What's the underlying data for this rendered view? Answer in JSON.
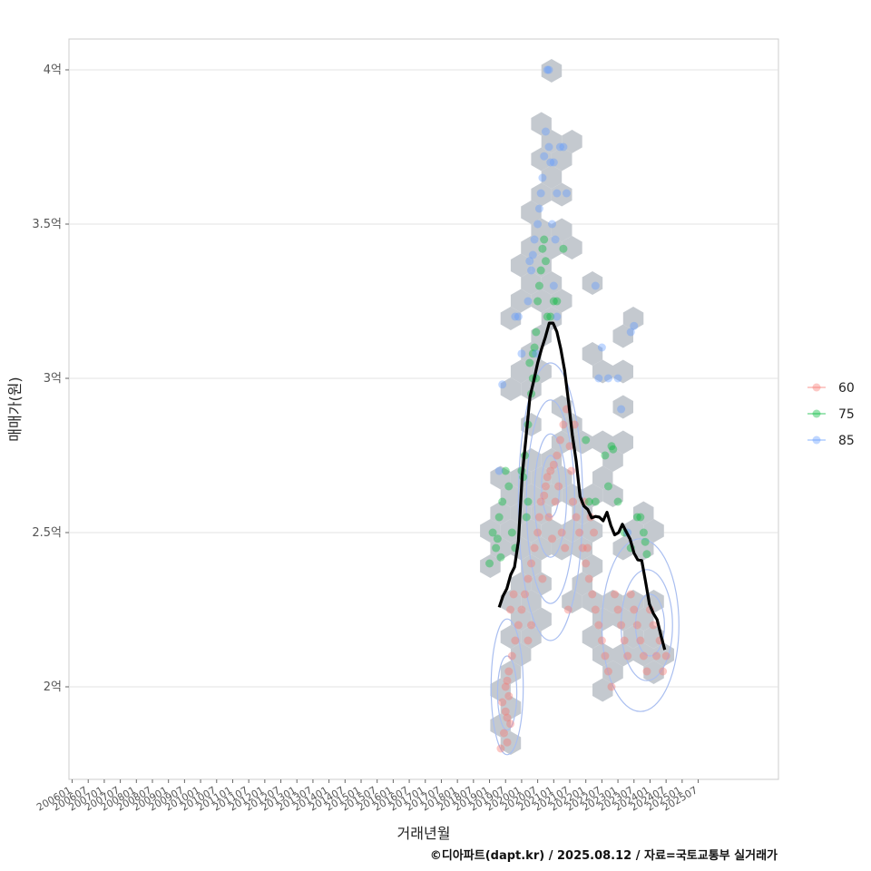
{
  "chart_data": {
    "type": "scatter",
    "xlabel": "거래년월",
    "ylabel": "매매가(원)",
    "x_ticks": [
      "200601",
      "200607",
      "200701",
      "200707",
      "200801",
      "200807",
      "200901",
      "200907",
      "201001",
      "201007",
      "201101",
      "201107",
      "201201",
      "201207",
      "201301",
      "201307",
      "201401",
      "201407",
      "201501",
      "201507",
      "201601",
      "201607",
      "201701",
      "201707",
      "201801",
      "201807",
      "201901",
      "201907",
      "202001",
      "202007",
      "202101",
      "202107",
      "202201",
      "202207",
      "202301",
      "202307",
      "202401",
      "202407",
      "202501",
      "202507"
    ],
    "y_ticks": [
      {
        "value": 2.0,
        "label": "2억"
      },
      {
        "value": 2.5,
        "label": "2.5억"
      },
      {
        "value": 3.0,
        "label": "3억"
      },
      {
        "value": 3.5,
        "label": "3.5억"
      },
      {
        "value": 4.0,
        "label": "4억"
      }
    ],
    "xlim": [
      2005.9,
      2028.0
    ],
    "ylim": [
      1.7,
      4.1
    ],
    "legend_position": "right",
    "grid": true,
    "series": [
      {
        "name": "60",
        "color": "#F8766D",
        "points": [
          [
            2019.4,
            1.95
          ],
          [
            2019.5,
            2.0
          ],
          [
            2019.55,
            1.9
          ],
          [
            2019.6,
            2.05
          ],
          [
            2019.45,
            1.85
          ],
          [
            2019.5,
            1.92
          ],
          [
            2019.6,
            1.97
          ],
          [
            2019.7,
            2.1
          ],
          [
            2019.35,
            1.8
          ],
          [
            2019.55,
            2.02
          ],
          [
            2019.65,
            1.88
          ],
          [
            2019.8,
            2.15
          ],
          [
            2019.9,
            2.2
          ],
          [
            2020.0,
            2.25
          ],
          [
            2020.1,
            2.3
          ],
          [
            2020.2,
            2.35
          ],
          [
            2020.3,
            2.4
          ],
          [
            2020.4,
            2.45
          ],
          [
            2020.5,
            2.5
          ],
          [
            2020.55,
            2.55
          ],
          [
            2020.6,
            2.6
          ],
          [
            2020.7,
            2.62
          ],
          [
            2020.75,
            2.65
          ],
          [
            2020.8,
            2.68
          ],
          [
            2020.9,
            2.7
          ],
          [
            2021.0,
            2.72
          ],
          [
            2021.1,
            2.75
          ],
          [
            2021.2,
            2.8
          ],
          [
            2021.3,
            2.85
          ],
          [
            2021.4,
            2.9
          ],
          [
            2021.5,
            2.78
          ],
          [
            2021.55,
            2.7
          ],
          [
            2020.85,
            2.55
          ],
          [
            2020.95,
            2.48
          ],
          [
            2021.05,
            2.6
          ],
          [
            2021.15,
            2.65
          ],
          [
            2021.25,
            2.5
          ],
          [
            2021.35,
            2.45
          ],
          [
            2021.6,
            2.6
          ],
          [
            2021.7,
            2.55
          ],
          [
            2021.8,
            2.5
          ],
          [
            2021.9,
            2.45
          ],
          [
            2022.0,
            2.4
          ],
          [
            2022.1,
            2.35
          ],
          [
            2022.2,
            2.3
          ],
          [
            2022.3,
            2.25
          ],
          [
            2022.4,
            2.2
          ],
          [
            2022.5,
            2.15
          ],
          [
            2022.6,
            2.1
          ],
          [
            2022.7,
            2.05
          ],
          [
            2022.8,
            2.0
          ],
          [
            2022.9,
            2.3
          ],
          [
            2023.0,
            2.25
          ],
          [
            2023.1,
            2.2
          ],
          [
            2023.2,
            2.15
          ],
          [
            2023.3,
            2.1
          ],
          [
            2023.4,
            2.3
          ],
          [
            2023.5,
            2.25
          ],
          [
            2023.6,
            2.2
          ],
          [
            2023.7,
            2.15
          ],
          [
            2023.8,
            2.1
          ],
          [
            2023.9,
            2.05
          ],
          [
            2024.0,
            2.25
          ],
          [
            2024.1,
            2.2
          ],
          [
            2024.2,
            2.1
          ],
          [
            2024.3,
            2.15
          ],
          [
            2024.4,
            2.05
          ],
          [
            2024.5,
            2.1
          ],
          [
            2020.3,
            2.2
          ],
          [
            2020.2,
            2.15
          ],
          [
            2021.45,
            2.25
          ],
          [
            2022.15,
            2.55
          ],
          [
            2022.25,
            2.5
          ],
          [
            2021.95,
            2.6
          ],
          [
            2019.75,
            2.3
          ],
          [
            2019.65,
            2.25
          ],
          [
            2020.65,
            2.35
          ],
          [
            2021.65,
            2.85
          ],
          [
            2022.05,
            2.45
          ],
          [
            2019.55,
            1.82
          ]
        ]
      },
      {
        "name": "75",
        "color": "#00BA38",
        "points": [
          [
            2019.0,
            2.4
          ],
          [
            2019.1,
            2.5
          ],
          [
            2019.2,
            2.45
          ],
          [
            2019.3,
            2.55
          ],
          [
            2019.4,
            2.6
          ],
          [
            2019.5,
            2.7
          ],
          [
            2019.6,
            2.65
          ],
          [
            2019.7,
            2.5
          ],
          [
            2019.8,
            2.45
          ],
          [
            2020.0,
            2.7
          ],
          [
            2020.1,
            2.75
          ],
          [
            2020.2,
            2.85
          ],
          [
            2020.3,
            2.95
          ],
          [
            2020.35,
            3.0
          ],
          [
            2020.4,
            3.1
          ],
          [
            2020.45,
            3.15
          ],
          [
            2020.5,
            3.25
          ],
          [
            2020.55,
            3.3
          ],
          [
            2020.6,
            3.35
          ],
          [
            2020.7,
            3.45
          ],
          [
            2020.8,
            3.2
          ],
          [
            2020.9,
            3.2
          ],
          [
            2021.0,
            3.25
          ],
          [
            2021.1,
            3.25
          ],
          [
            2021.3,
            3.42
          ],
          [
            2020.2,
            2.6
          ],
          [
            2020.15,
            2.55
          ],
          [
            2020.25,
            3.05
          ],
          [
            2020.35,
            3.08
          ],
          [
            2022.0,
            2.8
          ],
          [
            2022.1,
            2.6
          ],
          [
            2022.3,
            2.6
          ],
          [
            2022.6,
            2.75
          ],
          [
            2022.8,
            2.78
          ],
          [
            2022.85,
            2.77
          ],
          [
            2022.7,
            2.65
          ],
          [
            2023.0,
            2.6
          ],
          [
            2023.2,
            2.5
          ],
          [
            2023.4,
            2.45
          ],
          [
            2023.6,
            2.55
          ],
          [
            2023.7,
            2.55
          ],
          [
            2023.8,
            2.5
          ],
          [
            2023.85,
            2.47
          ],
          [
            2023.9,
            2.43
          ],
          [
            2020.45,
            3.0
          ],
          [
            2020.65,
            3.42
          ],
          [
            2020.75,
            3.38
          ],
          [
            2019.25,
            2.48
          ],
          [
            2019.35,
            2.42
          ],
          [
            2020.05,
            2.68
          ]
        ]
      },
      {
        "name": "85",
        "color": "#619CFF",
        "points": [
          [
            2019.3,
            2.7
          ],
          [
            2019.4,
            2.98
          ],
          [
            2019.8,
            3.2
          ],
          [
            2020.0,
            3.08
          ],
          [
            2020.2,
            3.25
          ],
          [
            2020.3,
            3.35
          ],
          [
            2020.35,
            3.4
          ],
          [
            2020.4,
            3.45
          ],
          [
            2020.5,
            3.5
          ],
          [
            2020.6,
            3.6
          ],
          [
            2020.65,
            3.65
          ],
          [
            2020.7,
            3.72
          ],
          [
            2020.75,
            3.8
          ],
          [
            2020.85,
            3.75
          ],
          [
            2020.9,
            3.7
          ],
          [
            2021.0,
            3.7
          ],
          [
            2021.1,
            3.6
          ],
          [
            2021.2,
            3.75
          ],
          [
            2021.3,
            3.75
          ],
          [
            2021.4,
            3.6
          ],
          [
            2020.8,
            4.0
          ],
          [
            2020.85,
            4.0
          ],
          [
            2020.95,
            3.5
          ],
          [
            2021.0,
            3.3
          ],
          [
            2021.1,
            3.2
          ],
          [
            2022.3,
            3.3
          ],
          [
            2022.5,
            3.1
          ],
          [
            2022.7,
            3.0
          ],
          [
            2023.0,
            3.0
          ],
          [
            2023.1,
            2.9
          ],
          [
            2023.4,
            3.15
          ],
          [
            2023.5,
            3.17
          ],
          [
            2020.25,
            3.38
          ],
          [
            2020.55,
            3.55
          ],
          [
            2021.05,
            3.45
          ],
          [
            2022.4,
            3.0
          ],
          [
            2023.3,
            2.5
          ],
          [
            2020.45,
            3.08
          ],
          [
            2019.9,
            3.2
          ]
        ]
      }
    ]
  },
  "legend": {
    "items": [
      {
        "label": "60",
        "color": "#F8766D"
      },
      {
        "label": "75",
        "color": "#00BA38"
      },
      {
        "label": "85",
        "color": "#619CFF"
      }
    ]
  },
  "credit": "©디아파트(dapt.kr) / 2025.08.12 / 자료=국토교통부 실거래가"
}
